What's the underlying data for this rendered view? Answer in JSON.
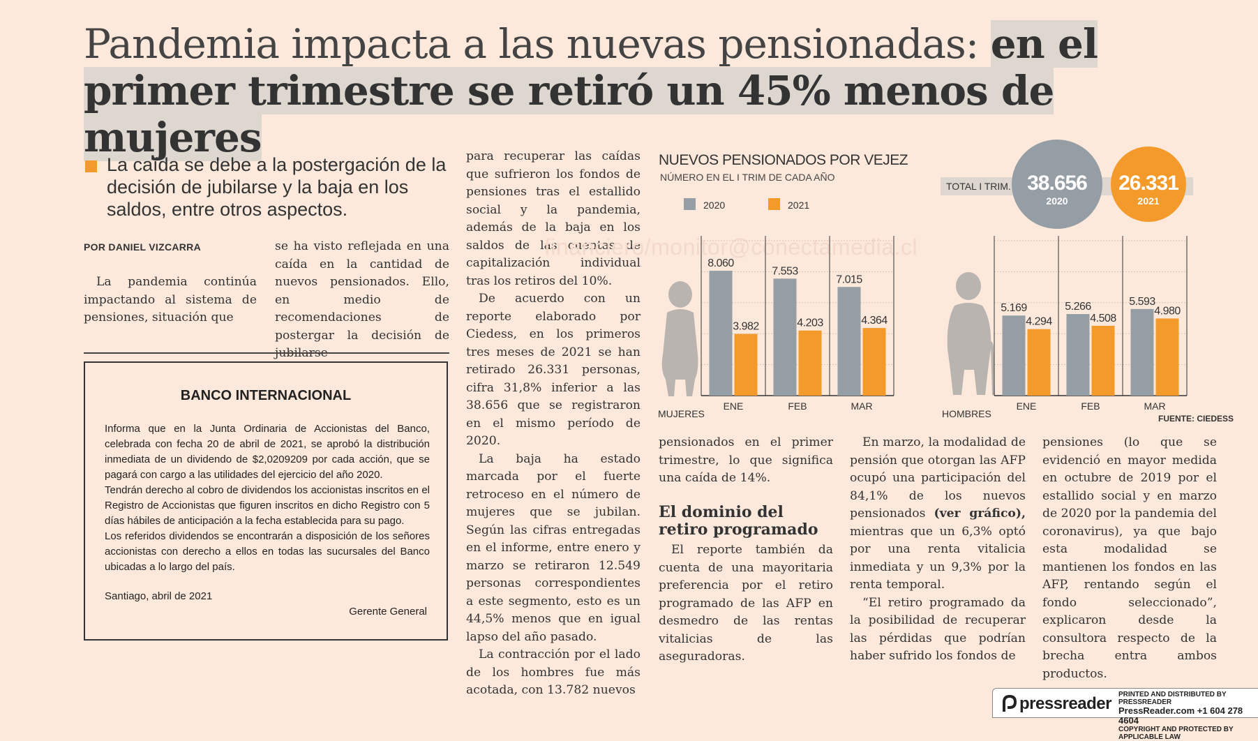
{
  "headline": {
    "part1": "Pandemia impacta a las nuevas pensionadas: ",
    "part2": "en el primer trimestre se retiró un 45% menos de mujeres"
  },
  "lead": "La caída se debe a la postergación de la decisión de jubilarse y la baja en los saldos, entre otros aspectos.",
  "byline": "POR DANIEL VIZCARRA",
  "col1": "La pandemia continúa impactando al sistema de pensiones, situación que",
  "col2": "se ha visto reflejada en una caída en la cantidad de nuevos pensionados. Ello, en medio de recomendaciones de postergar la decisión de jubilarse",
  "ad": {
    "title": "BANCO INTERNACIONAL",
    "p1": "Informa que en la Junta Ordinaria de Accionistas del Banco, celebrada con fecha 20 de abril de 2021, se aprobó la distribución inmediata de un dividendo de $2,0209209 por cada acción, que se pagará con cargo a las utilidades del ejercicio del año 2020.",
    "p2": "Tendrán derecho al cobro de dividendos los accionistas inscritos en el Registro de Accionistas que figuren inscritos en dicho Registro con 5 días hábiles de anticipación a la fecha establecida para su pago.",
    "p3": "Los referidos dividendos se encontrarán a disposición de los señores accionistas con derecho a ellos en todas las sucursales del Banco ubicadas a lo largo del país.",
    "place": "Santiago, abril de 2021",
    "sign": "Gerente General"
  },
  "col3": {
    "p1": "para recuperar las caídas que sufrieron los fondos de pensiones tras el estallido social y la pandemia, además de la baja en los saldos de las cuentas de capitalización individual tras los retiros del 10%.",
    "p2": "De acuerdo con un reporte elaborado por Ciedess, en los primeros tres meses de 2021 se han retirado 26.331 personas, cifra 31,8% inferior a las 38.656 que se registraron en el mismo período de 2020.",
    "p3": "La baja ha estado marcada por el fuerte retroceso en el número de mujeres que se jubilan. Según las cifras entregadas en el informe, entre enero y marzo se retiraron 12.549 personas correspondientes a este segmento, esto es un 44,5% menos que en igual lapso del año pasado.",
    "p4": "La contracción por el lado de los hombres fue más acotada, con 13.782 nuevos"
  },
  "col4": {
    "p1": "pensionados en el primer trimestre, lo que significa una caída de 14%.",
    "subhead": "El dominio del retiro programado",
    "p2": "El reporte también da cuenta de una mayoritaria preferencia por el retiro programado de las AFP en desmedro de las rentas vitalicias de las aseguradoras."
  },
  "col5": {
    "p1a": "En marzo, la modalidad de pensión que otorgan las AFP ocupó una participación del 84,1% de los nuevos pensionados ",
    "p1b": "(ver gráfico),",
    "p1c": " mientras que un 6,3% optó por una renta vitalicia inmediata y un 9,3% por la renta temporal.",
    "p2": "“El retiro programado da la posibilidad de recuperar las pérdidas que podrían haber sufrido los fondos de"
  },
  "col6": "pensiones (lo que se evidenció en mayor medida en octubre de 2019 por el estallido social y en marzo de 2020 por la pandemia del coronavirus), ya que bajo esta modalidad se mantienen los fondos en las AFP, rentando según el fondo seleccionado”, explicaron desde la consultora respecto de la brecha entra ambos productos.",
  "watermark": "financiero/monitor@conectamedia.cl",
  "chart_data": {
    "type": "bar",
    "title": "NUEVOS PENSIONADOS POR VEJEZ",
    "subtitle": "NÚMERO EN EL I TRIM DE CADA AÑO",
    "legend": [
      "2020",
      "2021"
    ],
    "colors": {
      "2020": "#959da5",
      "2021": "#f39a2a"
    },
    "total_label": "TOTAL I TRIM.",
    "totals": [
      {
        "year": "2020",
        "value": "38.656"
      },
      {
        "year": "2021",
        "value": "26.331"
      }
    ],
    "categories": [
      "ENE",
      "FEB",
      "MAR"
    ],
    "panels": [
      {
        "label": "MUJERES",
        "series": [
          {
            "name": "2020",
            "values": [
              8060,
              7553,
              7015
            ],
            "labels": [
              "8.060",
              "7.553",
              "7.015"
            ]
          },
          {
            "name": "2021",
            "values": [
              3982,
              4203,
              4364
            ],
            "labels": [
              "3.982",
              "4.203",
              "4.364"
            ]
          }
        ]
      },
      {
        "label": "HOMBRES",
        "series": [
          {
            "name": "2020",
            "values": [
              5169,
              5266,
              5593
            ],
            "labels": [
              "5.169",
              "5.266",
              "5.593"
            ]
          },
          {
            "name": "2021",
            "values": [
              4294,
              4508,
              4980
            ],
            "labels": [
              "4.294",
              "4.508",
              "4.980"
            ]
          }
        ]
      }
    ],
    "ylim": [
      0,
      10000
    ],
    "source": "FUENTE: CIEDESS"
  },
  "pressreader": {
    "logo": "pressreader",
    "line1": "PRINTED AND DISTRIBUTED BY PRESSREADER",
    "line2": "PressReader.com +1 604 278 4604",
    "line3": "COPYRIGHT AND PROTECTED BY APPLICABLE LAW"
  }
}
